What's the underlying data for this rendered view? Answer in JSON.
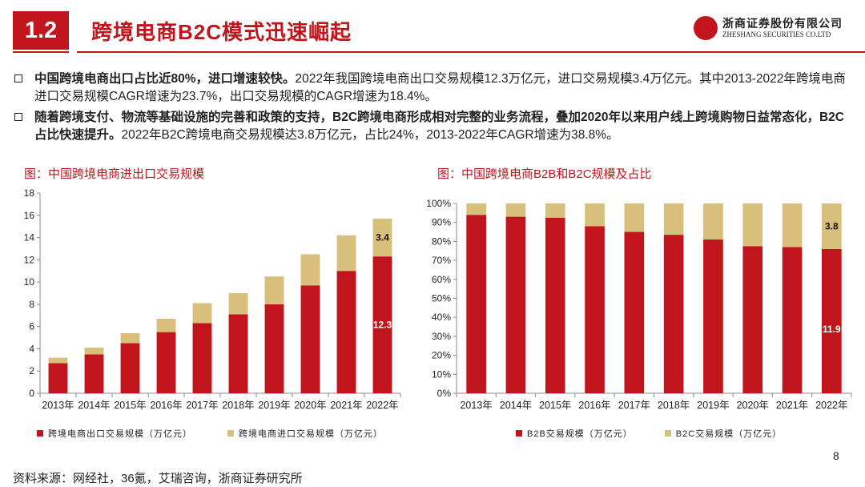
{
  "header": {
    "section_number": "1.2",
    "title": "跨境电商B2C模式迅速崛起",
    "logo_cn": "浙商证券股份有限公司",
    "logo_en": "ZHESHANG SECURITIES CO.LTD"
  },
  "bullets": [
    {
      "bold": "中国跨境电商出口占比近80%，进口增速较快。",
      "text": "2022年我国跨境电商出口交易规模12.3万亿元，进口交易规模3.4万亿元。其中2013-2022年跨境电商进口交易规模CAGR增速为23.7%，出口交易规模的CAGR增速为18.4%。"
    },
    {
      "bold": "随着跨境支付、物流等基础设施的完善和政策的支持，B2C跨境电商形成相对完整的业务流程，叠加2020年以来用户线上跨境购物日益常态化，B2C占比快速提升。",
      "text": "2022年B2C跨境电商交易规模达3.8万亿元，占比24%，2013-2022年CAGR增速为38.8%。"
    }
  ],
  "colors": {
    "red": "#c0151c",
    "tan": "#d8bf7c"
  },
  "chart_data": [
    {
      "type": "bar",
      "stacked": true,
      "title": "图：中国跨境电商进出口交易规模",
      "categories": [
        "2013年",
        "2014年",
        "2015年",
        "2016年",
        "2017年",
        "2018年",
        "2019年",
        "2020年",
        "2021年",
        "2022年"
      ],
      "series": [
        {
          "name": "跨境电商出口交易规模（万亿元）",
          "values": [
            2.7,
            3.5,
            4.5,
            5.5,
            6.3,
            7.1,
            8.0,
            9.7,
            11.0,
            12.3
          ]
        },
        {
          "name": "跨境电商进口交易规模（万亿元）",
          "values": [
            0.5,
            0.6,
            0.9,
            1.2,
            1.8,
            1.9,
            2.5,
            2.8,
            3.2,
            3.4
          ]
        }
      ],
      "data_labels": [
        {
          "category": "2022年",
          "series": 0,
          "text": "12.3"
        },
        {
          "category": "2022年",
          "series": 1,
          "text": "3.4"
        }
      ],
      "yticks": [
        "0",
        "2",
        "4",
        "6",
        "8",
        "10",
        "12",
        "14",
        "16",
        "18"
      ],
      "ylim": [
        0,
        18
      ]
    },
    {
      "type": "bar",
      "stacked": true,
      "title": "图：中国跨境电商B2B和B2C规模及占比",
      "categories": [
        "2013年",
        "2014年",
        "2015年",
        "2016年",
        "2017年",
        "2018年",
        "2019年",
        "2020年",
        "2021年",
        "2022年"
      ],
      "series": [
        {
          "name": "B2B交易规模（万亿元）",
          "values": [
            94,
            93,
            92.5,
            88,
            85,
            83.5,
            81,
            77.5,
            77,
            76
          ]
        },
        {
          "name": "B2C交易规模（万亿元）",
          "values": [
            6,
            7,
            7.5,
            12,
            15,
            16.5,
            19,
            22.5,
            23,
            24
          ]
        }
      ],
      "data_labels": [
        {
          "category": "2022年",
          "series": 0,
          "text": "11.9"
        },
        {
          "category": "2022年",
          "series": 1,
          "text": "3.8"
        }
      ],
      "yticks": [
        "0%",
        "10%",
        "20%",
        "30%",
        "40%",
        "50%",
        "60%",
        "70%",
        "80%",
        "90%",
        "100%"
      ],
      "ylim": [
        0,
        100
      ]
    }
  ],
  "legends": [
    {
      "items": [
        "跨境电商出口交易规模（万亿元）",
        "跨境电商进口交易规模（万亿元）"
      ]
    },
    {
      "items": [
        "B2B交易规模（万亿元）",
        "B2C交易规模（万亿元）"
      ]
    }
  ],
  "footer": {
    "source": "资料来源：网经社，36氪，艾瑞咨询，浙商证券研究所",
    "page": "8"
  }
}
